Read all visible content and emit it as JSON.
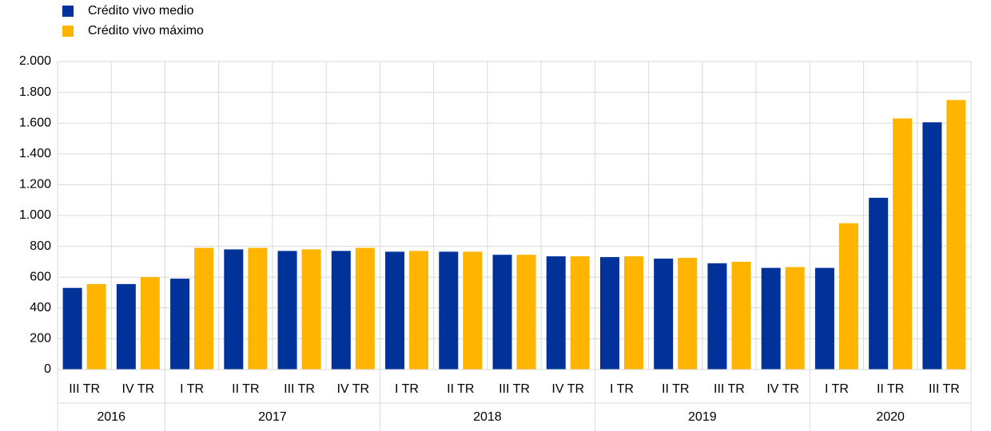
{
  "chart_data": {
    "type": "bar",
    "categories": [
      "III TR",
      "IV TR",
      "I TR",
      "II TR",
      "III TR",
      "IV TR",
      "I TR",
      "II TR",
      "III TR",
      "IV TR",
      "I TR",
      "II TR",
      "III TR",
      "IV TR",
      "I TR",
      "II TR",
      "III TR"
    ],
    "category_groups": [
      "2016",
      null,
      "2017",
      null,
      null,
      null,
      "2018",
      null,
      null,
      null,
      "2019",
      null,
      null,
      null,
      "2020",
      null,
      null
    ],
    "series": [
      {
        "name": "Crédito vivo medio",
        "color": "#003299",
        "values": [
          530,
          555,
          590,
          780,
          770,
          770,
          765,
          765,
          745,
          735,
          730,
          720,
          690,
          660,
          660,
          1115,
          1605
        ]
      },
      {
        "name": "Crédito vivo máximo",
        "color": "#ffb400",
        "values": [
          555,
          600,
          790,
          790,
          780,
          790,
          770,
          765,
          745,
          735,
          735,
          725,
          700,
          665,
          950,
          1630,
          1750
        ]
      }
    ],
    "ylim": [
      0,
      2000
    ],
    "yticks": [
      0,
      200,
      400,
      600,
      800,
      {
        "value": 1000,
        "label": "1.000"
      },
      {
        "value": 1200,
        "label": "1.200"
      },
      {
        "value": 1400,
        "label": "1.400"
      },
      {
        "value": 1600,
        "label": "1.600"
      },
      {
        "value": 1800,
        "label": "1.800"
      },
      {
        "value": 2000,
        "label": "2.000"
      }
    ],
    "grid": true,
    "legend": "top-left"
  }
}
